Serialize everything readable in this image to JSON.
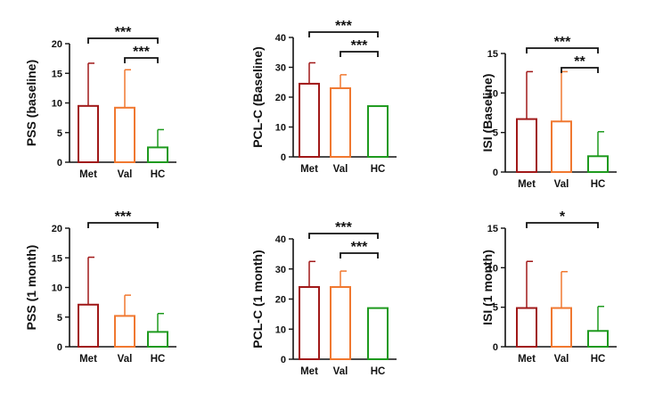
{
  "figure": {
    "background": "#ffffff"
  },
  "colors": {
    "Met": "#a01818",
    "Val": "#f07830",
    "HC": "#1e9a1e",
    "axis": "#111111"
  },
  "chart_data": [
    {
      "id": "pss-baseline",
      "type": "bar",
      "categories": [
        "Met",
        "Val",
        "HC"
      ],
      "values": [
        9.5,
        9.2,
        2.5
      ],
      "errors": [
        7.2,
        6.4,
        3.0
      ],
      "ylabel": "PSS (baseline)",
      "ylim": [
        0,
        20
      ],
      "yticks": [
        "0",
        "5",
        "10",
        "15",
        "20"
      ],
      "significance": [
        {
          "from": "Met",
          "to": "HC",
          "label": "***"
        },
        {
          "from": "Val",
          "to": "HC",
          "label": "***"
        }
      ]
    },
    {
      "id": "pclc-baseline",
      "type": "bar",
      "categories": [
        "Met",
        "Val",
        "HC"
      ],
      "values": [
        24.5,
        23.0,
        17.0
      ],
      "errors": [
        7.0,
        4.5,
        0
      ],
      "ylabel": "PCL-C (Baseline)",
      "ylim": [
        0,
        40
      ],
      "yticks": [
        "0",
        "10",
        "20",
        "30",
        "40"
      ],
      "significance": [
        {
          "from": "Met",
          "to": "HC",
          "label": "***"
        },
        {
          "from": "Val",
          "to": "HC",
          "label": "***"
        }
      ]
    },
    {
      "id": "isi-baseline",
      "type": "bar",
      "categories": [
        "Met",
        "Val",
        "HC"
      ],
      "values": [
        6.7,
        6.4,
        2.0
      ],
      "errors": [
        6.0,
        6.3,
        3.1
      ],
      "ylabel": "ISI (Baseline)",
      "ylim": [
        0,
        15
      ],
      "yticks": [
        "0",
        "5",
        "10",
        "15"
      ],
      "significance": [
        {
          "from": "Met",
          "to": "HC",
          "label": "***"
        },
        {
          "from": "Val",
          "to": "HC",
          "label": "**"
        }
      ]
    },
    {
      "id": "pss-1month",
      "type": "bar",
      "categories": [
        "Met",
        "Val",
        "HC"
      ],
      "values": [
        7.1,
        5.2,
        2.5
      ],
      "errors": [
        8.0,
        3.5,
        3.1
      ],
      "ylabel": "PSS (1 month)",
      "ylim": [
        0,
        20
      ],
      "yticks": [
        "0",
        "5",
        "10",
        "15",
        "20"
      ],
      "significance": [
        {
          "from": "Met",
          "to": "HC",
          "label": "***"
        }
      ]
    },
    {
      "id": "pclc-1month",
      "type": "bar",
      "categories": [
        "Met",
        "Val",
        "HC"
      ],
      "values": [
        24.0,
        24.0,
        17.0
      ],
      "errors": [
        8.5,
        5.3,
        0
      ],
      "ylabel": "PCL-C (1 month)",
      "ylim": [
        0,
        40
      ],
      "yticks": [
        "0",
        "10",
        "20",
        "30",
        "40"
      ],
      "significance": [
        {
          "from": "Met",
          "to": "HC",
          "label": "***"
        },
        {
          "from": "Val",
          "to": "HC",
          "label": "***"
        }
      ]
    },
    {
      "id": "isi-1month",
      "type": "bar",
      "categories": [
        "Met",
        "Val",
        "HC"
      ],
      "values": [
        4.9,
        4.9,
        2.0
      ],
      "errors": [
        5.9,
        4.6,
        3.1
      ],
      "ylabel": "ISI (1 month)",
      "ylim": [
        0,
        15
      ],
      "yticks": [
        "0",
        "5",
        "10",
        "15"
      ],
      "significance": [
        {
          "from": "Met",
          "to": "HC",
          "label": "*"
        }
      ]
    }
  ]
}
